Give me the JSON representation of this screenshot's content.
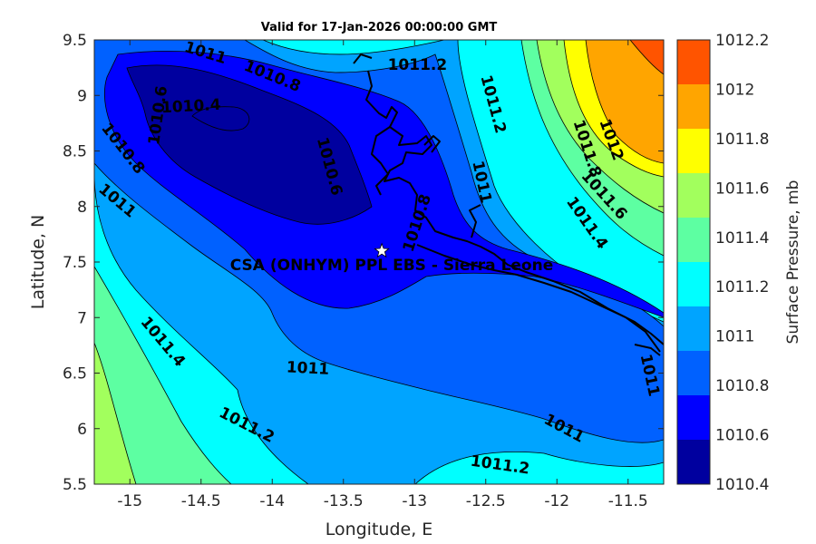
{
  "title": "Valid for 17-Jan-2026 00:00:00 GMT",
  "chart_data": {
    "type": "contour-map",
    "xlabel": "Longitude, E",
    "ylabel": "Latitude, N",
    "xlim": [
      -15.25,
      -11.25
    ],
    "ylim": [
      5.5,
      9.5
    ],
    "xticks": [
      -15,
      -14.5,
      -14,
      -13.5,
      -13,
      -12.5,
      -12,
      -11.5
    ],
    "xtick_labels": [
      "-15",
      "-14.5",
      "-14",
      "-13.5",
      "-13",
      "-12.5",
      "-12",
      "-11.5"
    ],
    "yticks": [
      5.5,
      6,
      6.5,
      7,
      7.5,
      8,
      8.5,
      9,
      9.5
    ],
    "ytick_labels": [
      "5.5",
      "6",
      "6.5",
      "7",
      "7.5",
      "8",
      "8.5",
      "9",
      "9.5"
    ],
    "site": {
      "label": "CSA (ONHYM) PPL EBS  - Sierra Leone",
      "lon": -13.23,
      "lat": 7.6
    },
    "colorbar": {
      "label": "Surface Pressure, mb",
      "levels": [
        1010.4,
        1010.6,
        1010.8,
        1011,
        1011.2,
        1011.4,
        1011.6,
        1011.8,
        1012,
        1012.2
      ],
      "level_labels": [
        "1010.4",
        "1010.6",
        "1010.8",
        "1011",
        "1011.2",
        "1011.4",
        "1011.6",
        "1011.8",
        "1012",
        "1012.2"
      ],
      "colors": [
        "#00009f",
        "#0000ff",
        "#0061ff",
        "#00a4ff",
        "#00ffff",
        "#5dffa2",
        "#a2ff5d",
        "#ffff00",
        "#ffa500",
        "#ff5400"
      ]
    },
    "contour_labels": [
      {
        "text": "1011",
        "lon": -14.47,
        "lat": 9.38,
        "rot": 17
      },
      {
        "text": "1011.2",
        "lon": -12.98,
        "lat": 9.27,
        "rot": 0
      },
      {
        "text": "1010.8",
        "lon": -14.0,
        "lat": 9.17,
        "rot": 22
      },
      {
        "text": "1011.2",
        "lon": -12.45,
        "lat": 8.92,
        "rot": 75
      },
      {
        "text": "1010.4",
        "lon": -14.57,
        "lat": 8.9,
        "rot": -3
      },
      {
        "text": "1010.6",
        "lon": -14.8,
        "lat": 8.82,
        "rot": -82
      },
      {
        "text": "1012",
        "lon": -11.62,
        "lat": 8.6,
        "rot": 70
      },
      {
        "text": "1011.8",
        "lon": -11.79,
        "lat": 8.52,
        "rot": 72
      },
      {
        "text": "1010.8",
        "lon": -15.05,
        "lat": 8.52,
        "rot": 52
      },
      {
        "text": "1010.6",
        "lon": -13.6,
        "lat": 8.36,
        "rot": 75
      },
      {
        "text": "1011",
        "lon": -12.53,
        "lat": 8.22,
        "rot": 78
      },
      {
        "text": "1011.6",
        "lon": -11.67,
        "lat": 8.1,
        "rot": 48
      },
      {
        "text": "1011",
        "lon": -15.09,
        "lat": 8.05,
        "rot": 40
      },
      {
        "text": "1011.4",
        "lon": -11.79,
        "lat": 7.85,
        "rot": 55
      },
      {
        "text": "1010.8",
        "lon": -12.98,
        "lat": 7.85,
        "rot": -72
      },
      {
        "text": "1011.4",
        "lon": -14.77,
        "lat": 6.78,
        "rot": 50
      },
      {
        "text": "1011",
        "lon": -13.75,
        "lat": 6.54,
        "rot": 3
      },
      {
        "text": "1011",
        "lon": -11.35,
        "lat": 6.48,
        "rot": 78
      },
      {
        "text": "1011.2",
        "lon": -14.18,
        "lat": 6.03,
        "rot": 27
      },
      {
        "text": "1011",
        "lon": -11.95,
        "lat": 6.0,
        "rot": 28
      },
      {
        "text": "1011.2",
        "lon": -12.4,
        "lat": 5.67,
        "rot": 8
      }
    ]
  }
}
